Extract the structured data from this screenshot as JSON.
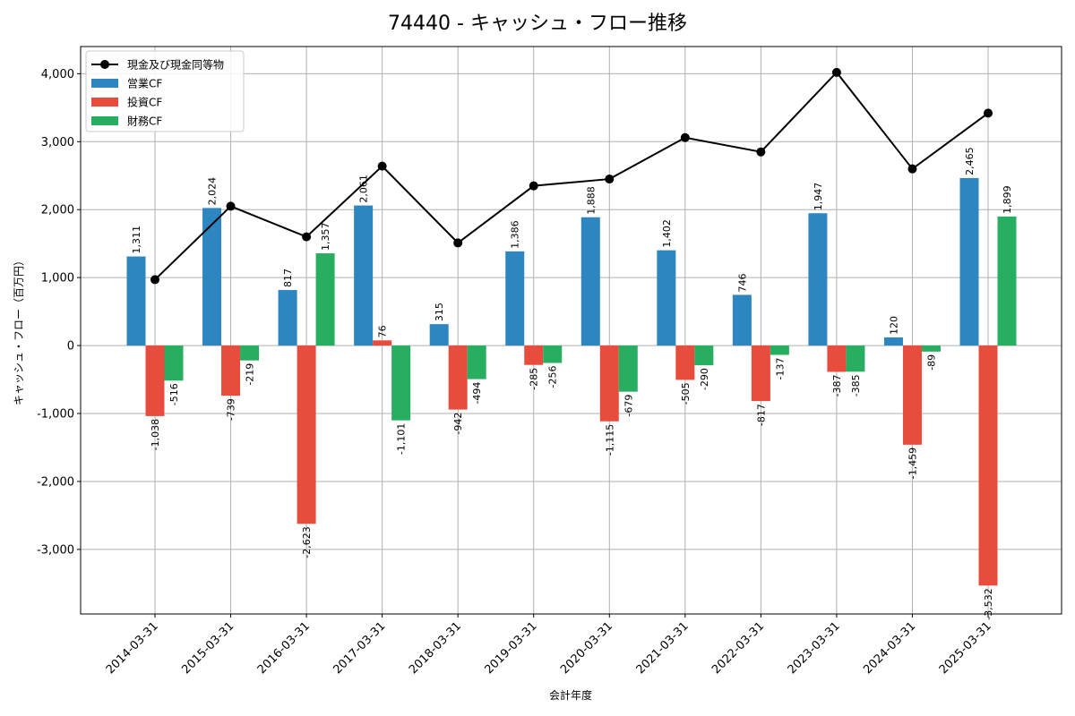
{
  "chart_data": {
    "type": "bar",
    "title": "74440 - キャッシュ・フロー推移",
    "xlabel": "会計年度",
    "ylabel": "キャッシュ・フロー（百万円）",
    "ylim": [
      -3950,
      4400
    ],
    "yticks": [
      -3000,
      -2000,
      -1000,
      0,
      1000,
      2000,
      3000,
      4000
    ],
    "ytick_labels": [
      "-3,000",
      "-2,000",
      "-1,000",
      "0",
      "1,000",
      "2,000",
      "3,000",
      "4,000"
    ],
    "grid": true,
    "legend_position": "top-left",
    "categories": [
      "2014-03-31",
      "2015-03-31",
      "2016-03-31",
      "2017-03-31",
      "2018-03-31",
      "2019-03-31",
      "2020-03-31",
      "2021-03-31",
      "2022-03-31",
      "2023-03-31",
      "2024-03-31",
      "2025-03-31"
    ],
    "series": [
      {
        "name": "営業CF",
        "type": "bar",
        "color": "#2e86c1",
        "values": [
          1311,
          2024,
          817,
          2061,
          315,
          1386,
          1888,
          1402,
          746,
          1947,
          120,
          2465
        ],
        "labels": [
          "1,311",
          "2,024",
          "817",
          "2,061",
          "315",
          "1,386",
          "1,888",
          "1,402",
          "746",
          "1,947",
          "120",
          "2,465"
        ]
      },
      {
        "name": "投資CF",
        "type": "bar",
        "color": "#e74c3c",
        "values": [
          -1038,
          -739,
          -2623,
          76,
          -942,
          -285,
          -1115,
          -505,
          -817,
          -387,
          -1459,
          -3532
        ],
        "labels": [
          "-1,038",
          "-739",
          "-2,623",
          "76",
          "-942",
          "-285",
          "-1,115",
          "-505",
          "-817",
          "-387",
          "-1,459",
          "-3,532"
        ]
      },
      {
        "name": "財務CF",
        "type": "bar",
        "color": "#27ae60",
        "values": [
          -516,
          -219,
          1357,
          -1101,
          -494,
          -256,
          -679,
          -290,
          -137,
          -385,
          -89,
          1899
        ],
        "labels": [
          "-516",
          "-219",
          "1,357",
          "-1,101",
          "-494",
          "-256",
          "-679",
          "-290",
          "-137",
          "-385",
          "-89",
          "1,899"
        ]
      },
      {
        "name": "現金及び現金同等物",
        "type": "line",
        "color": "#000000",
        "values": [
          970,
          2050,
          1600,
          2640,
          1510,
          2350,
          2450,
          3060,
          2850,
          4020,
          2600,
          3420
        ]
      }
    ]
  }
}
